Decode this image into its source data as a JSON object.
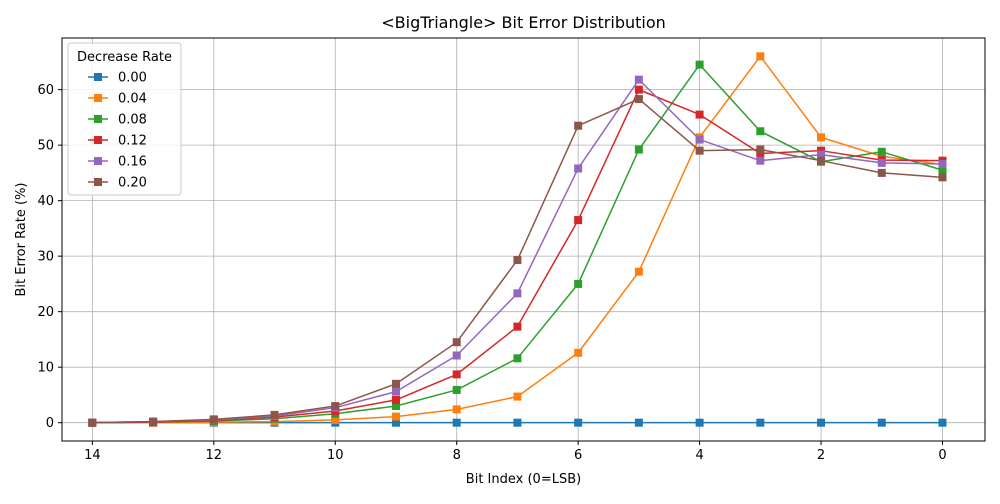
{
  "chart_data": {
    "type": "line",
    "title": "<BigTriangle> Bit Error Distribution",
    "xlabel": "Bit Index (0=LSB)",
    "ylabel": "Bit Error Rate (%)",
    "xlim": [
      14.5,
      -0.7
    ],
    "ylim": [
      -3.3,
      69.3
    ],
    "x_inverted": true,
    "xticks": [
      14,
      12,
      10,
      8,
      6,
      4,
      2,
      0
    ],
    "yticks": [
      0,
      10,
      20,
      30,
      40,
      50,
      60
    ],
    "grid": true,
    "legend": {
      "title": "Decrease Rate",
      "placement": "top-left"
    },
    "x": [
      14,
      13,
      12,
      11,
      10,
      9,
      8,
      7,
      6,
      5,
      4,
      3,
      2,
      1,
      0
    ],
    "series": [
      {
        "name": "0.00",
        "color": "#1f77b4",
        "values": [
          0,
          0,
          0,
          0,
          0,
          0,
          0,
          0,
          0,
          0,
          0,
          0,
          0,
          0,
          0
        ]
      },
      {
        "name": "0.04",
        "color": "#ff7f0e",
        "values": [
          0,
          0,
          0.1,
          0.2,
          0.5,
          1.1,
          2.4,
          4.7,
          12.6,
          27.2,
          51.4,
          66.0,
          51.4,
          48.0,
          46.5
        ]
      },
      {
        "name": "0.08",
        "color": "#2ca02c",
        "values": [
          0,
          0.1,
          0.3,
          0.7,
          1.6,
          3.0,
          5.9,
          11.6,
          25.0,
          49.2,
          64.5,
          52.5,
          47.0,
          48.8,
          45.5
        ]
      },
      {
        "name": "0.12",
        "color": "#d62728",
        "values": [
          0,
          0.1,
          0.4,
          1.0,
          2.1,
          4.1,
          8.7,
          17.3,
          36.5,
          60.0,
          55.5,
          48.5,
          49.0,
          47.3,
          47.2
        ]
      },
      {
        "name": "0.16",
        "color": "#9467bd",
        "values": [
          0,
          0.2,
          0.5,
          1.2,
          2.7,
          5.6,
          12.1,
          23.3,
          45.8,
          61.8,
          51.0,
          47.2,
          48.3,
          46.8,
          46.6
        ]
      },
      {
        "name": "0.20",
        "color": "#8c564b",
        "values": [
          0,
          0.2,
          0.6,
          1.4,
          3.0,
          7.0,
          14.5,
          29.3,
          53.5,
          58.3,
          49.0,
          49.2,
          47.2,
          45.0,
          44.2
        ]
      }
    ]
  }
}
